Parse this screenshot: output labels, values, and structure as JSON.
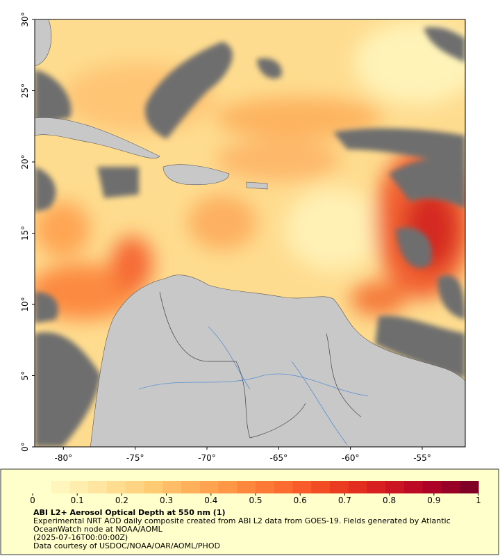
{
  "chart_data": {
    "type": "map",
    "xlim": [
      -82,
      -52
    ],
    "ylim": [
      0,
      30
    ],
    "xticks": [
      {
        "value": -80,
        "label": "-80°"
      },
      {
        "value": -75,
        "label": "-75°"
      },
      {
        "value": -70,
        "label": "-70°"
      },
      {
        "value": -65,
        "label": "-65°"
      },
      {
        "value": -60,
        "label": "-60°"
      },
      {
        "value": -55,
        "label": "-55°"
      }
    ],
    "yticks": [
      {
        "value": 0,
        "label": "0°"
      },
      {
        "value": 5,
        "label": "5°"
      },
      {
        "value": 10,
        "label": "10°"
      },
      {
        "value": 15,
        "label": "15°"
      },
      {
        "value": 20,
        "label": "20°"
      },
      {
        "value": 25,
        "label": "25°"
      },
      {
        "value": 30,
        "label": "30°"
      }
    ],
    "colorbar": {
      "range": [
        0,
        1
      ],
      "ticks": [
        0,
        0.1,
        0.2,
        0.3,
        0.4,
        0.5,
        0.6,
        0.7,
        0.8,
        0.9,
        1
      ],
      "colors": [
        "#ffffcc",
        "#fff6bd",
        "#ffedae",
        "#ffe59f",
        "#fedc90",
        "#fed381",
        "#feca72",
        "#febd66",
        "#feb05b",
        "#fea350",
        "#fd9645",
        "#fd883d",
        "#fc7a36",
        "#fc6b2f",
        "#f95c2a",
        "#f24c25",
        "#eb3c20",
        "#e22d1f",
        "#d7201f",
        "#cb1522",
        "#bd0b26",
        "#ac0326",
        "#980026",
        "#800026"
      ]
    },
    "title": "ABI L2+ Aerosol Optical Depth at 550 nm (1)",
    "description": "Experimental NRT AOD daily composite created from ABI L2 data from GOES-19. Fields generated by Atlantic OceanWatch node at NOAA/AOML",
    "timestamp": "(2025-07-16T00:00:00Z)",
    "credit": "Data courtesy of USDOC/NOAA/OAR/AOML/PHOD"
  }
}
